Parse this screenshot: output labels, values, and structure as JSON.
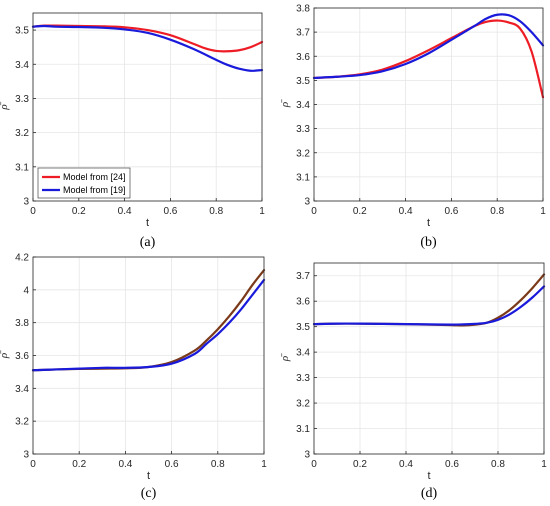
{
  "chart_data": [
    {
      "type": "line",
      "panel_label": "(a)",
      "xlabel": "t",
      "ylabel": "ρ̄",
      "xlim": [
        0,
        1
      ],
      "ylim": [
        3.0,
        3.55
      ],
      "xticks": [
        0,
        0.2,
        0.4,
        0.6,
        0.8,
        1
      ],
      "yticks": [
        3,
        3.1,
        3.2,
        3.3,
        3.4,
        3.5
      ],
      "grid": true,
      "legend": "bottom-left",
      "series": [
        {
          "name": "Model from [24]",
          "color": "#ee1c25",
          "x": [
            0,
            0.05,
            0.1,
            0.2,
            0.3,
            0.4,
            0.5,
            0.6,
            0.7,
            0.75,
            0.8,
            0.85,
            0.9,
            0.95,
            1.0
          ],
          "y": [
            3.51,
            3.513,
            3.513,
            3.512,
            3.511,
            3.508,
            3.5,
            3.485,
            3.46,
            3.447,
            3.439,
            3.438,
            3.441,
            3.45,
            3.465
          ]
        },
        {
          "name": "Model from [19]",
          "color": "#1a1adb",
          "x": [
            0,
            0.05,
            0.1,
            0.2,
            0.3,
            0.4,
            0.5,
            0.6,
            0.7,
            0.8,
            0.85,
            0.9,
            0.95,
            1.0
          ],
          "y": [
            3.51,
            3.512,
            3.51,
            3.509,
            3.507,
            3.502,
            3.492,
            3.472,
            3.445,
            3.413,
            3.398,
            3.387,
            3.381,
            3.383
          ]
        }
      ]
    },
    {
      "type": "line",
      "panel_label": "(b)",
      "xlabel": "t",
      "ylabel": "ρ̄",
      "xlim": [
        0,
        1
      ],
      "ylim": [
        3.0,
        3.8
      ],
      "xticks": [
        0,
        0.2,
        0.4,
        0.6,
        0.8,
        1
      ],
      "yticks": [
        3,
        3.1,
        3.2,
        3.3,
        3.4,
        3.5,
        3.6,
        3.7,
        3.8
      ],
      "grid": true,
      "series": [
        {
          "color": "#ee1c25",
          "x": [
            0,
            0.1,
            0.2,
            0.3,
            0.4,
            0.5,
            0.6,
            0.7,
            0.75,
            0.8,
            0.85,
            0.9,
            0.95,
            1.0
          ],
          "y": [
            3.51,
            3.515,
            3.525,
            3.545,
            3.58,
            3.625,
            3.675,
            3.725,
            3.742,
            3.748,
            3.74,
            3.715,
            3.62,
            3.43
          ]
        },
        {
          "color": "#1a1adb",
          "x": [
            0,
            0.1,
            0.2,
            0.3,
            0.4,
            0.5,
            0.6,
            0.7,
            0.75,
            0.8,
            0.85,
            0.9,
            0.95,
            1.0
          ],
          "y": [
            3.51,
            3.515,
            3.522,
            3.538,
            3.568,
            3.612,
            3.668,
            3.725,
            3.755,
            3.772,
            3.77,
            3.745,
            3.7,
            3.645
          ]
        }
      ]
    },
    {
      "type": "line",
      "panel_label": "(c)",
      "xlabel": "t",
      "ylabel": "ρ̄",
      "xlim": [
        0,
        1
      ],
      "ylim": [
        3.0,
        4.2
      ],
      "xticks": [
        0,
        0.2,
        0.4,
        0.6,
        0.8,
        1
      ],
      "yticks": [
        3,
        3.2,
        3.4,
        3.6,
        3.8,
        4,
        4.2
      ],
      "grid": true,
      "series": [
        {
          "color": "#7a3a1a",
          "x": [
            0,
            0.1,
            0.2,
            0.3,
            0.4,
            0.5,
            0.6,
            0.7,
            0.75,
            0.8,
            0.85,
            0.9,
            0.95,
            1.0
          ],
          "y": [
            3.51,
            3.515,
            3.518,
            3.52,
            3.522,
            3.53,
            3.56,
            3.63,
            3.69,
            3.76,
            3.84,
            3.93,
            4.03,
            4.12
          ]
        },
        {
          "color": "#1a1adb",
          "x": [
            0,
            0.1,
            0.2,
            0.3,
            0.4,
            0.5,
            0.6,
            0.7,
            0.75,
            0.8,
            0.85,
            0.9,
            0.95,
            1.0
          ],
          "y": [
            3.51,
            3.515,
            3.52,
            3.525,
            3.525,
            3.53,
            3.55,
            3.61,
            3.67,
            3.73,
            3.8,
            3.88,
            3.97,
            4.06
          ]
        }
      ]
    },
    {
      "type": "line",
      "panel_label": "(d)",
      "xlabel": "t",
      "ylabel": "ρ̄",
      "xlim": [
        0,
        1
      ],
      "ylim": [
        3.0,
        3.75
      ],
      "xticks": [
        0,
        0.2,
        0.4,
        0.6,
        0.8,
        1
      ],
      "yticks": [
        3,
        3.1,
        3.2,
        3.3,
        3.4,
        3.5,
        3.6,
        3.7
      ],
      "grid": true,
      "series": [
        {
          "color": "#7a3a1a",
          "x": [
            0,
            0.1,
            0.2,
            0.3,
            0.4,
            0.5,
            0.6,
            0.65,
            0.7,
            0.75,
            0.8,
            0.85,
            0.9,
            0.95,
            1.0
          ],
          "y": [
            3.51,
            3.512,
            3.512,
            3.511,
            3.51,
            3.508,
            3.506,
            3.505,
            3.508,
            3.515,
            3.535,
            3.565,
            3.605,
            3.652,
            3.705
          ]
        },
        {
          "color": "#1a1adb",
          "x": [
            0,
            0.1,
            0.2,
            0.3,
            0.4,
            0.5,
            0.6,
            0.65,
            0.7,
            0.75,
            0.8,
            0.85,
            0.9,
            0.95,
            1.0
          ],
          "y": [
            3.51,
            3.512,
            3.512,
            3.511,
            3.51,
            3.509,
            3.508,
            3.509,
            3.511,
            3.515,
            3.527,
            3.548,
            3.578,
            3.615,
            3.658
          ]
        }
      ]
    }
  ]
}
